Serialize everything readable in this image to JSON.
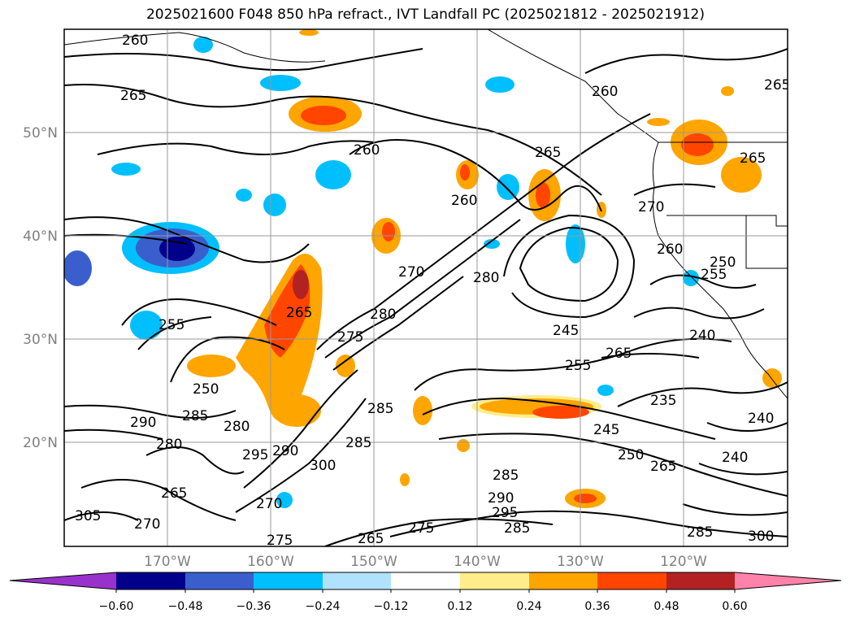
{
  "title": "2025021600 F048 850 hPa refract., IVT Landfall PC (2025021812 - 2025021912)",
  "map": {
    "lat_labels": [
      "50°N",
      "40°N",
      "30°N",
      "20°N"
    ],
    "lon_labels": [
      "170°W",
      "160°W",
      "150°W",
      "140°W",
      "130°W",
      "120°W"
    ],
    "grid": true,
    "contour_labels": [
      "260",
      "265",
      "260",
      "265",
      "260",
      "265",
      "270",
      "260",
      "265",
      "260",
      "250",
      "255",
      "270",
      "280",
      "275",
      "280",
      "265",
      "255",
      "245",
      "265",
      "255",
      "250",
      "285",
      "235",
      "240",
      "290",
      "285",
      "280",
      "290",
      "295",
      "285",
      "285",
      "245",
      "250",
      "265",
      "240",
      "240",
      "270",
      "265",
      "280",
      "285",
      "290",
      "295",
      "275",
      "270",
      "265",
      "275",
      "285",
      "305",
      "300",
      "300"
    ]
  },
  "colorbar": {
    "ticks": [
      "−0.60",
      "−0.48",
      "−0.36",
      "−0.24",
      "−0.12",
      "0.12",
      "0.24",
      "0.36",
      "0.48",
      "0.60"
    ],
    "colors": [
      "#9932CC",
      "#00008B",
      "#3A5FCD",
      "#00BFFF",
      "#B0E2FF",
      "#FFFFFF",
      "#FFEC8B",
      "#FFA500",
      "#FF4500",
      "#B22222",
      "#FF82AB"
    ]
  }
}
